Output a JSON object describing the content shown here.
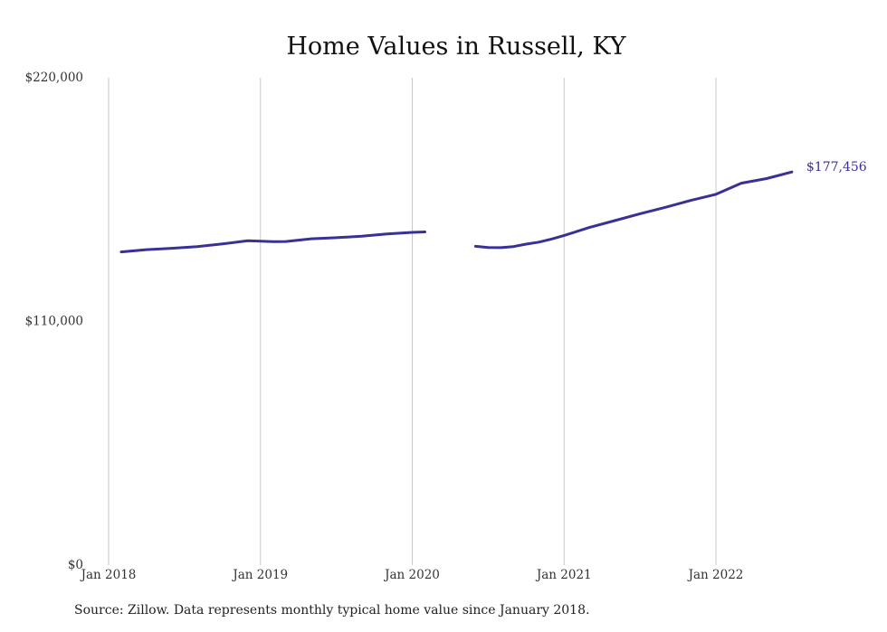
{
  "chart_data": {
    "type": "line",
    "title": "Home Values in Russell, KY",
    "xlabel": "",
    "ylabel": "",
    "ylim": [
      0,
      220000
    ],
    "yticks": [
      {
        "value": 0,
        "label": "$0"
      },
      {
        "value": 110000,
        "label": "$110,000"
      },
      {
        "value": 220000,
        "label": "$220,000"
      }
    ],
    "xticks": [
      {
        "value": "2018-01",
        "label": "Jan 2018"
      },
      {
        "value": "2019-01",
        "label": "Jan 2019"
      },
      {
        "value": "2020-01",
        "label": "Jan 2020"
      },
      {
        "value": "2021-01",
        "label": "Jan 2021"
      },
      {
        "value": "2022-01",
        "label": "Jan 2022"
      }
    ],
    "x_range": [
      "2018-01",
      "2022-08"
    ],
    "grid": "vertical",
    "line_color": "#3a3197",
    "end_label": "$177,456",
    "segments": [
      [
        {
          "x": "2018-02",
          "y": 141400
        },
        {
          "x": "2018-04",
          "y": 142400
        },
        {
          "x": "2018-06",
          "y": 143000
        },
        {
          "x": "2018-08",
          "y": 143800
        },
        {
          "x": "2018-10",
          "y": 145000
        },
        {
          "x": "2018-12",
          "y": 146400
        },
        {
          "x": "2019-01",
          "y": 146200
        },
        {
          "x": "2019-02",
          "y": 146000
        },
        {
          "x": "2019-03",
          "y": 146100
        },
        {
          "x": "2019-05",
          "y": 147300
        },
        {
          "x": "2019-07",
          "y": 147800
        },
        {
          "x": "2019-09",
          "y": 148500
        },
        {
          "x": "2019-11",
          "y": 149500
        },
        {
          "x": "2020-01",
          "y": 150200
        },
        {
          "x": "2020-02",
          "y": 150400
        }
      ],
      [
        {
          "x": "2020-06",
          "y": 143900
        },
        {
          "x": "2020-07",
          "y": 143400
        },
        {
          "x": "2020-08",
          "y": 143300
        },
        {
          "x": "2020-09",
          "y": 143800
        },
        {
          "x": "2020-10",
          "y": 144900
        },
        {
          "x": "2020-11",
          "y": 145800
        },
        {
          "x": "2020-12",
          "y": 147200
        },
        {
          "x": "2021-01",
          "y": 148800
        },
        {
          "x": "2021-03",
          "y": 152400
        },
        {
          "x": "2021-05",
          "y": 155500
        },
        {
          "x": "2021-07",
          "y": 158600
        },
        {
          "x": "2021-09",
          "y": 161500
        },
        {
          "x": "2021-11",
          "y": 164600
        },
        {
          "x": "2022-01",
          "y": 167400
        },
        {
          "x": "2022-03",
          "y": 172400
        },
        {
          "x": "2022-05",
          "y": 174500
        },
        {
          "x": "2022-07",
          "y": 177456
        }
      ]
    ]
  },
  "source_note": "Source: Zillow. Data represents monthly typical home value since January 2018."
}
